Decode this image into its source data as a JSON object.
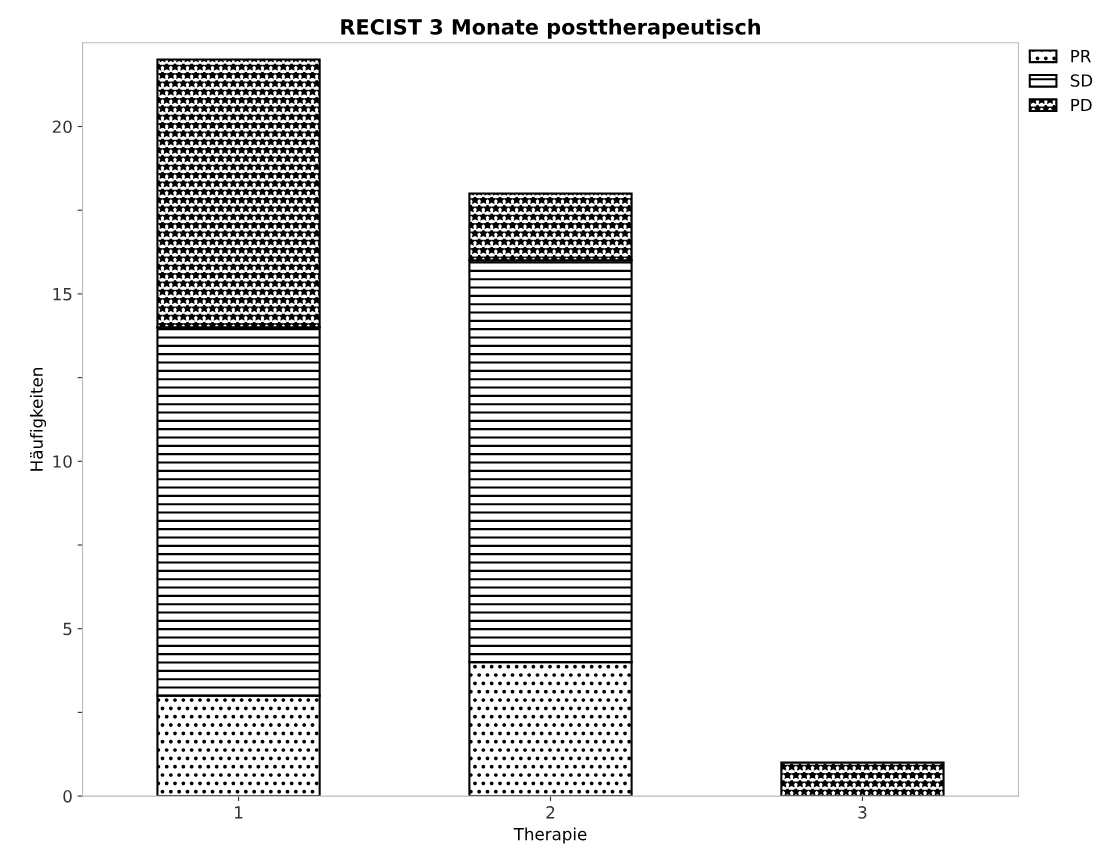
{
  "chart_data": {
    "type": "bar",
    "title": "RECIST 3 Monate posttherapeutisch",
    "xlabel": "Therapie",
    "ylabel": "Häufigkeiten",
    "categories": [
      "1",
      "2",
      "3"
    ],
    "stacked": true,
    "series": [
      {
        "name": "PR",
        "color": "#000000",
        "values": [
          3,
          4,
          0
        ]
      },
      {
        "name": "SD",
        "color": "#000000",
        "values": [
          11,
          12,
          0
        ]
      },
      {
        "name": "PD",
        "color": "#000000",
        "values": [
          8,
          2,
          1
        ]
      }
    ],
    "ylim": [
      0,
      22.5
    ],
    "yticks": [
      0,
      {
        "value": 2.5,
        "label": null
      },
      5,
      {
        "value": 7.5,
        "label": null
      },
      10,
      {
        "value": 12.5,
        "label": null
      },
      15,
      {
        "value": 17.5,
        "label": null
      },
      20
    ],
    "grid": false,
    "legend": "top right"
  }
}
